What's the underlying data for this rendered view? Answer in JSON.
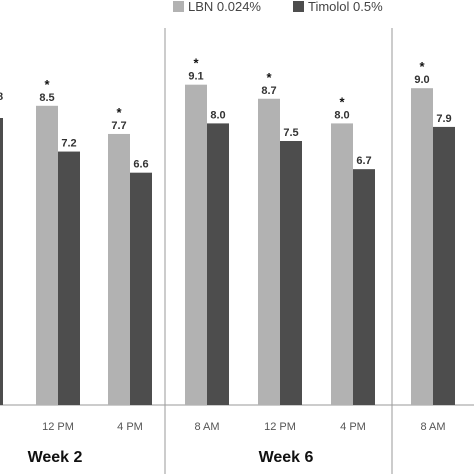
{
  "chart_data": {
    "type": "bar",
    "series": [
      {
        "name": "LBN 0.024%",
        "color": "#b2b2b2",
        "values": [
          null,
          8.5,
          7.7,
          9.1,
          8.7,
          8.0,
          9.0
        ],
        "significance": [
          "",
          "*",
          "*",
          "*",
          "*",
          "*",
          "*"
        ]
      },
      {
        "name": "Timolol 0.5%",
        "color": "#4d4d4d",
        "values": [
          null,
          7.2,
          6.6,
          8.0,
          7.5,
          6.7,
          7.9
        ]
      }
    ],
    "partial_left_value_label": "8",
    "categories": [
      "",
      "12 PM",
      "4 PM",
      "8 AM",
      "12 PM",
      "4 PM",
      "8 AM"
    ],
    "groups": [
      {
        "label": "Week 2"
      },
      {
        "label": "Week 6"
      },
      {
        "label": ""
      }
    ],
    "legend": {
      "position": "top-right"
    },
    "grid": false
  }
}
